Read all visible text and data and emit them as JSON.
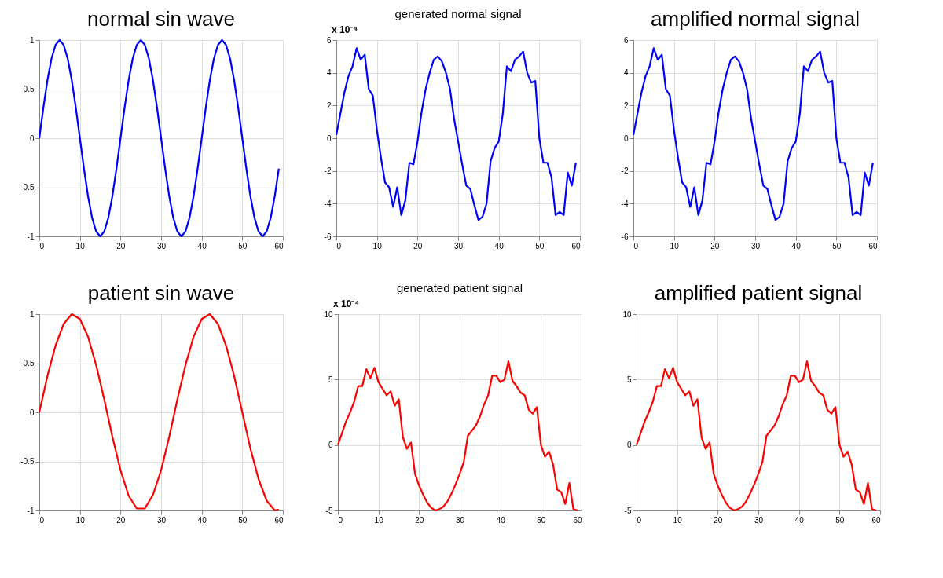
{
  "chart_data": [
    {
      "type": "line",
      "title": "normal sin wave",
      "x": [
        0,
        1,
        2,
        3,
        4,
        5,
        6,
        7,
        8,
        9,
        10,
        11,
        12,
        13,
        14,
        15,
        16,
        17,
        18,
        19,
        20,
        21,
        22,
        23,
        24,
        25,
        26,
        27,
        28,
        29,
        30,
        31,
        32,
        33,
        34,
        35,
        36,
        37,
        38,
        39,
        40,
        41,
        42,
        43,
        44,
        45,
        46,
        47,
        48,
        49,
        50,
        51,
        52,
        53,
        54,
        55,
        56,
        57,
        58,
        59
      ],
      "xlim": [
        0,
        60
      ],
      "xticks": [
        0,
        10,
        20,
        30,
        40,
        50,
        60
      ],
      "ylim": [
        -1,
        1
      ],
      "yticks": [
        -1,
        -0.5,
        0,
        0.5,
        1
      ],
      "grid": true,
      "line_style": "solid",
      "series": [
        {
          "color": "#0000ff",
          "values": [
            0,
            0.31,
            0.59,
            0.81,
            0.95,
            1,
            0.95,
            0.81,
            0.59,
            0.31,
            0,
            -0.31,
            -0.59,
            -0.81,
            -0.95,
            -1,
            -0.95,
            -0.81,
            -0.59,
            -0.31,
            0,
            0.31,
            0.59,
            0.81,
            0.95,
            1,
            0.95,
            0.81,
            0.59,
            0.31,
            0,
            -0.31,
            -0.59,
            -0.81,
            -0.95,
            -1,
            -0.95,
            -0.81,
            -0.59,
            -0.31,
            0,
            0.31,
            0.59,
            0.81,
            0.95,
            1,
            0.95,
            0.81,
            0.59,
            0.31,
            0,
            -0.31,
            -0.59,
            -0.81,
            -0.95,
            -1,
            -0.95,
            -0.81,
            -0.59,
            -0.31
          ]
        }
      ]
    },
    {
      "type": "line",
      "title": "generated normal signal",
      "annotations": [
        "x 10⁻⁴"
      ],
      "x": [
        0,
        1,
        2,
        3,
        4,
        5,
        6,
        7,
        8,
        9,
        10,
        11,
        12,
        13,
        14,
        15,
        16,
        17,
        18,
        19,
        20,
        21,
        22,
        23,
        24,
        25,
        26,
        27,
        28,
        29,
        30,
        31,
        32,
        33,
        34,
        35,
        36,
        37,
        38,
        39,
        40,
        41,
        42,
        43,
        44,
        45,
        46,
        47,
        48,
        49,
        50,
        51,
        52,
        53,
        54,
        55,
        56,
        57,
        58,
        59
      ],
      "xlim": [
        0,
        60
      ],
      "xticks": [
        0,
        10,
        20,
        30,
        40,
        50,
        60
      ],
      "ylim": [
        -6,
        6
      ],
      "yticks": [
        -6,
        -4,
        -2,
        0,
        2,
        4,
        6
      ],
      "grid": true,
      "line_style": "solid",
      "series": [
        {
          "color": "#0000ff",
          "values": [
            0.2,
            1.5,
            2.8,
            3.8,
            4.4,
            5.5,
            4.8,
            5.1,
            3.0,
            2.6,
            0.5,
            -1.2,
            -2.7,
            -3.0,
            -4.2,
            -3.0,
            -4.7,
            -3.8,
            -1.5,
            -1.6,
            -0.2,
            1.6,
            3.0,
            4.0,
            4.8,
            5.0,
            4.7,
            4.0,
            3.0,
            1.2,
            -0.2,
            -1.6,
            -2.9,
            -3.1,
            -4.1,
            -5.0,
            -4.8,
            -4.0,
            -1.4,
            -0.6,
            -0.2,
            1.5,
            4.4,
            4.1,
            4.8,
            5.0,
            5.3,
            4.0,
            3.4,
            3.5,
            0,
            -1.5,
            -1.5,
            -2.4,
            -4.7,
            -4.5,
            -4.7,
            -2.1,
            -2.9,
            -1.5
          ]
        }
      ]
    },
    {
      "type": "line",
      "title": "amplified normal signal",
      "x": [
        0,
        1,
        2,
        3,
        4,
        5,
        6,
        7,
        8,
        9,
        10,
        11,
        12,
        13,
        14,
        15,
        16,
        17,
        18,
        19,
        20,
        21,
        22,
        23,
        24,
        25,
        26,
        27,
        28,
        29,
        30,
        31,
        32,
        33,
        34,
        35,
        36,
        37,
        38,
        39,
        40,
        41,
        42,
        43,
        44,
        45,
        46,
        47,
        48,
        49,
        50,
        51,
        52,
        53,
        54,
        55,
        56,
        57,
        58,
        59
      ],
      "xlim": [
        0,
        60
      ],
      "xticks": [
        0,
        10,
        20,
        30,
        40,
        50,
        60
      ],
      "ylim": [
        -6,
        6
      ],
      "yticks": [
        -6,
        -4,
        -2,
        0,
        2,
        4,
        6
      ],
      "grid": true,
      "line_style": "solid",
      "series": [
        {
          "color": "#0000ff",
          "values": [
            0.2,
            1.5,
            2.8,
            3.8,
            4.4,
            5.5,
            4.8,
            5.1,
            3.0,
            2.6,
            0.5,
            -1.2,
            -2.7,
            -3.0,
            -4.2,
            -3.0,
            -4.7,
            -3.8,
            -1.5,
            -1.6,
            -0.2,
            1.6,
            3.0,
            4.0,
            4.8,
            5.0,
            4.7,
            4.0,
            3.0,
            1.2,
            -0.2,
            -1.6,
            -2.9,
            -3.1,
            -4.1,
            -5.0,
            -4.8,
            -4.0,
            -1.4,
            -0.6,
            -0.2,
            1.5,
            4.4,
            4.1,
            4.8,
            5.0,
            5.3,
            4.0,
            3.4,
            3.5,
            0,
            -1.5,
            -1.5,
            -2.4,
            -4.7,
            -4.5,
            -4.7,
            -2.1,
            -2.9,
            -1.5
          ]
        }
      ]
    },
    {
      "type": "line",
      "title": "patient sin wave",
      "x": [
        0,
        2,
        4,
        6,
        8,
        10,
        12,
        14,
        16,
        18,
        20,
        22,
        24,
        26,
        28,
        30,
        32,
        34,
        36,
        38,
        40,
        42,
        44,
        46,
        48,
        50,
        52,
        54,
        56,
        58,
        59
      ],
      "xlim": [
        0,
        60
      ],
      "xticks": [
        0,
        10,
        20,
        30,
        40,
        50,
        60
      ],
      "ylim": [
        -1,
        1
      ],
      "yticks": [
        -1,
        -0.5,
        0,
        0.5,
        1
      ],
      "grid": true,
      "line_style": "solid",
      "series": [
        {
          "color": "#ff0000",
          "values": [
            0,
            0.37,
            0.68,
            0.9,
            1.0,
            0.95,
            0.77,
            0.48,
            0.13,
            -0.25,
            -0.59,
            -0.85,
            -0.98,
            -0.98,
            -0.84,
            -0.59,
            -0.25,
            0.13,
            0.48,
            0.77,
            0.95,
            1.0,
            0.9,
            0.68,
            0.37,
            0,
            -0.37,
            -0.68,
            -0.9,
            -1.0,
            -0.99
          ]
        }
      ]
    },
    {
      "type": "line",
      "title": "generated patient signal",
      "annotations": [
        "x 10⁻⁴"
      ],
      "x": [
        0,
        1,
        2,
        3,
        4,
        5,
        6,
        7,
        8,
        9,
        10,
        11,
        12,
        13,
        14,
        15,
        16,
        17,
        18,
        19,
        20,
        21,
        22,
        23,
        24,
        25,
        26,
        27,
        28,
        29,
        30,
        31,
        32,
        33,
        34,
        35,
        36,
        37,
        38,
        39,
        40,
        41,
        42,
        43,
        44,
        45,
        46,
        47,
        48,
        49,
        50,
        51,
        52,
        53,
        54,
        55,
        56,
        57,
        58,
        59
      ],
      "xlim": [
        0,
        60
      ],
      "xticks": [
        0,
        10,
        20,
        30,
        40,
        50,
        60
      ],
      "ylim": [
        -5,
        10
      ],
      "yticks": [
        -5,
        0,
        5,
        10
      ],
      "grid": true,
      "line_style": "solid",
      "series": [
        {
          "color": "#ff0000",
          "values": [
            0,
            0.9,
            1.8,
            2.5,
            3.3,
            4.5,
            4.5,
            5.8,
            5.1,
            5.9,
            4.8,
            4.3,
            3.8,
            4.1,
            3.0,
            3.5,
            0.6,
            -0.3,
            0.2,
            -2.2,
            -3.1,
            -3.8,
            -4.4,
            -4.8,
            -5.0,
            -4.9,
            -4.7,
            -4.3,
            -3.7,
            -3.0,
            -2.2,
            -1.3,
            0.7,
            1.1,
            1.5,
            2.2,
            3.1,
            3.8,
            5.3,
            5.3,
            4.8,
            5.0,
            6.4,
            4.9,
            4.5,
            4.0,
            3.8,
            2.7,
            2.4,
            2.9,
            0,
            -0.9,
            -0.5,
            -1.5,
            -3.4,
            -3.6,
            -4.5,
            -2.9,
            -4.9,
            -5.0
          ]
        }
      ]
    },
    {
      "type": "line",
      "title": "amplified patient signal",
      "x": [
        0,
        1,
        2,
        3,
        4,
        5,
        6,
        7,
        8,
        9,
        10,
        11,
        12,
        13,
        14,
        15,
        16,
        17,
        18,
        19,
        20,
        21,
        22,
        23,
        24,
        25,
        26,
        27,
        28,
        29,
        30,
        31,
        32,
        33,
        34,
        35,
        36,
        37,
        38,
        39,
        40,
        41,
        42,
        43,
        44,
        45,
        46,
        47,
        48,
        49,
        50,
        51,
        52,
        53,
        54,
        55,
        56,
        57,
        58,
        59
      ],
      "xlim": [
        0,
        60
      ],
      "xticks": [
        0,
        10,
        20,
        30,
        40,
        50,
        60
      ],
      "ylim": [
        -5,
        10
      ],
      "yticks": [
        -5,
        0,
        5,
        10
      ],
      "grid": true,
      "line_style": "solid",
      "series": [
        {
          "color": "#ff0000",
          "values": [
            0,
            0.9,
            1.8,
            2.5,
            3.3,
            4.5,
            4.5,
            5.8,
            5.1,
            5.9,
            4.8,
            4.3,
            3.8,
            4.1,
            3.0,
            3.5,
            0.6,
            -0.3,
            0.2,
            -2.2,
            -3.1,
            -3.8,
            -4.4,
            -4.8,
            -5.0,
            -4.9,
            -4.7,
            -4.3,
            -3.7,
            -3.0,
            -2.2,
            -1.3,
            0.7,
            1.1,
            1.5,
            2.2,
            3.1,
            3.8,
            5.3,
            5.3,
            4.8,
            5.0,
            6.4,
            4.9,
            4.5,
            4.0,
            3.8,
            2.7,
            2.4,
            2.9,
            0,
            -0.9,
            -0.5,
            -1.5,
            -3.4,
            -3.6,
            -4.5,
            -2.9,
            -4.9,
            -5.0
          ]
        }
      ]
    }
  ]
}
